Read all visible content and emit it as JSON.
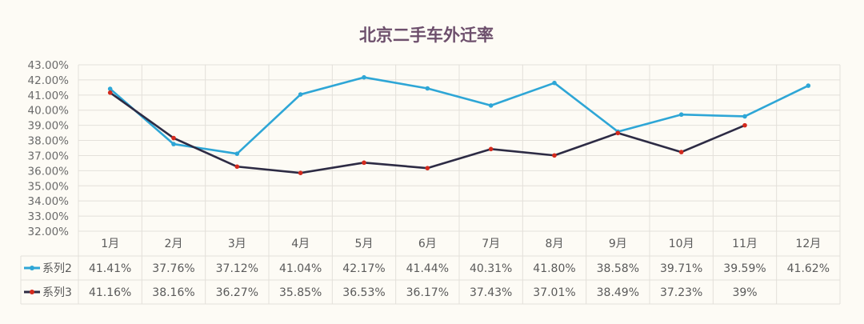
{
  "chart_data": {
    "type": "line",
    "title": "北京二手车外迁率",
    "categories": [
      "1月",
      "2月",
      "3月",
      "4月",
      "5月",
      "6月",
      "7月",
      "8月",
      "9月",
      "10月",
      "11月",
      "12月"
    ],
    "ylim": [
      32,
      43
    ],
    "yticks": [
      "32.00%",
      "33.00%",
      "34.00%",
      "35.00%",
      "36.00%",
      "37.00%",
      "38.00%",
      "39.00%",
      "40.00%",
      "41.00%",
      "42.00%",
      "43.00%"
    ],
    "grid": true,
    "legend": "data-table",
    "series": [
      {
        "name": "系列2",
        "color": "#2ea6d6",
        "values": [
          41.41,
          37.76,
          37.12,
          41.04,
          42.17,
          41.44,
          40.31,
          41.8,
          38.58,
          39.71,
          39.59,
          41.62
        ],
        "labels": [
          "41.41%",
          "37.76%",
          "37.12%",
          "41.04%",
          "42.17%",
          "41.44%",
          "40.31%",
          "41.80%",
          "38.58%",
          "39.71%",
          "39.59%",
          "41.62%"
        ]
      },
      {
        "name": "系列3",
        "color": "#2d2b44",
        "marker_color": "#d42a1d",
        "values": [
          41.16,
          38.16,
          36.27,
          35.85,
          36.53,
          36.17,
          37.43,
          37.01,
          38.49,
          37.23,
          39,
          null
        ],
        "labels": [
          "41.16%",
          "38.16%",
          "36.27%",
          "35.85%",
          "36.53%",
          "36.17%",
          "37.43%",
          "37.01%",
          "38.49%",
          "37.23%",
          "39%",
          ""
        ]
      }
    ]
  }
}
